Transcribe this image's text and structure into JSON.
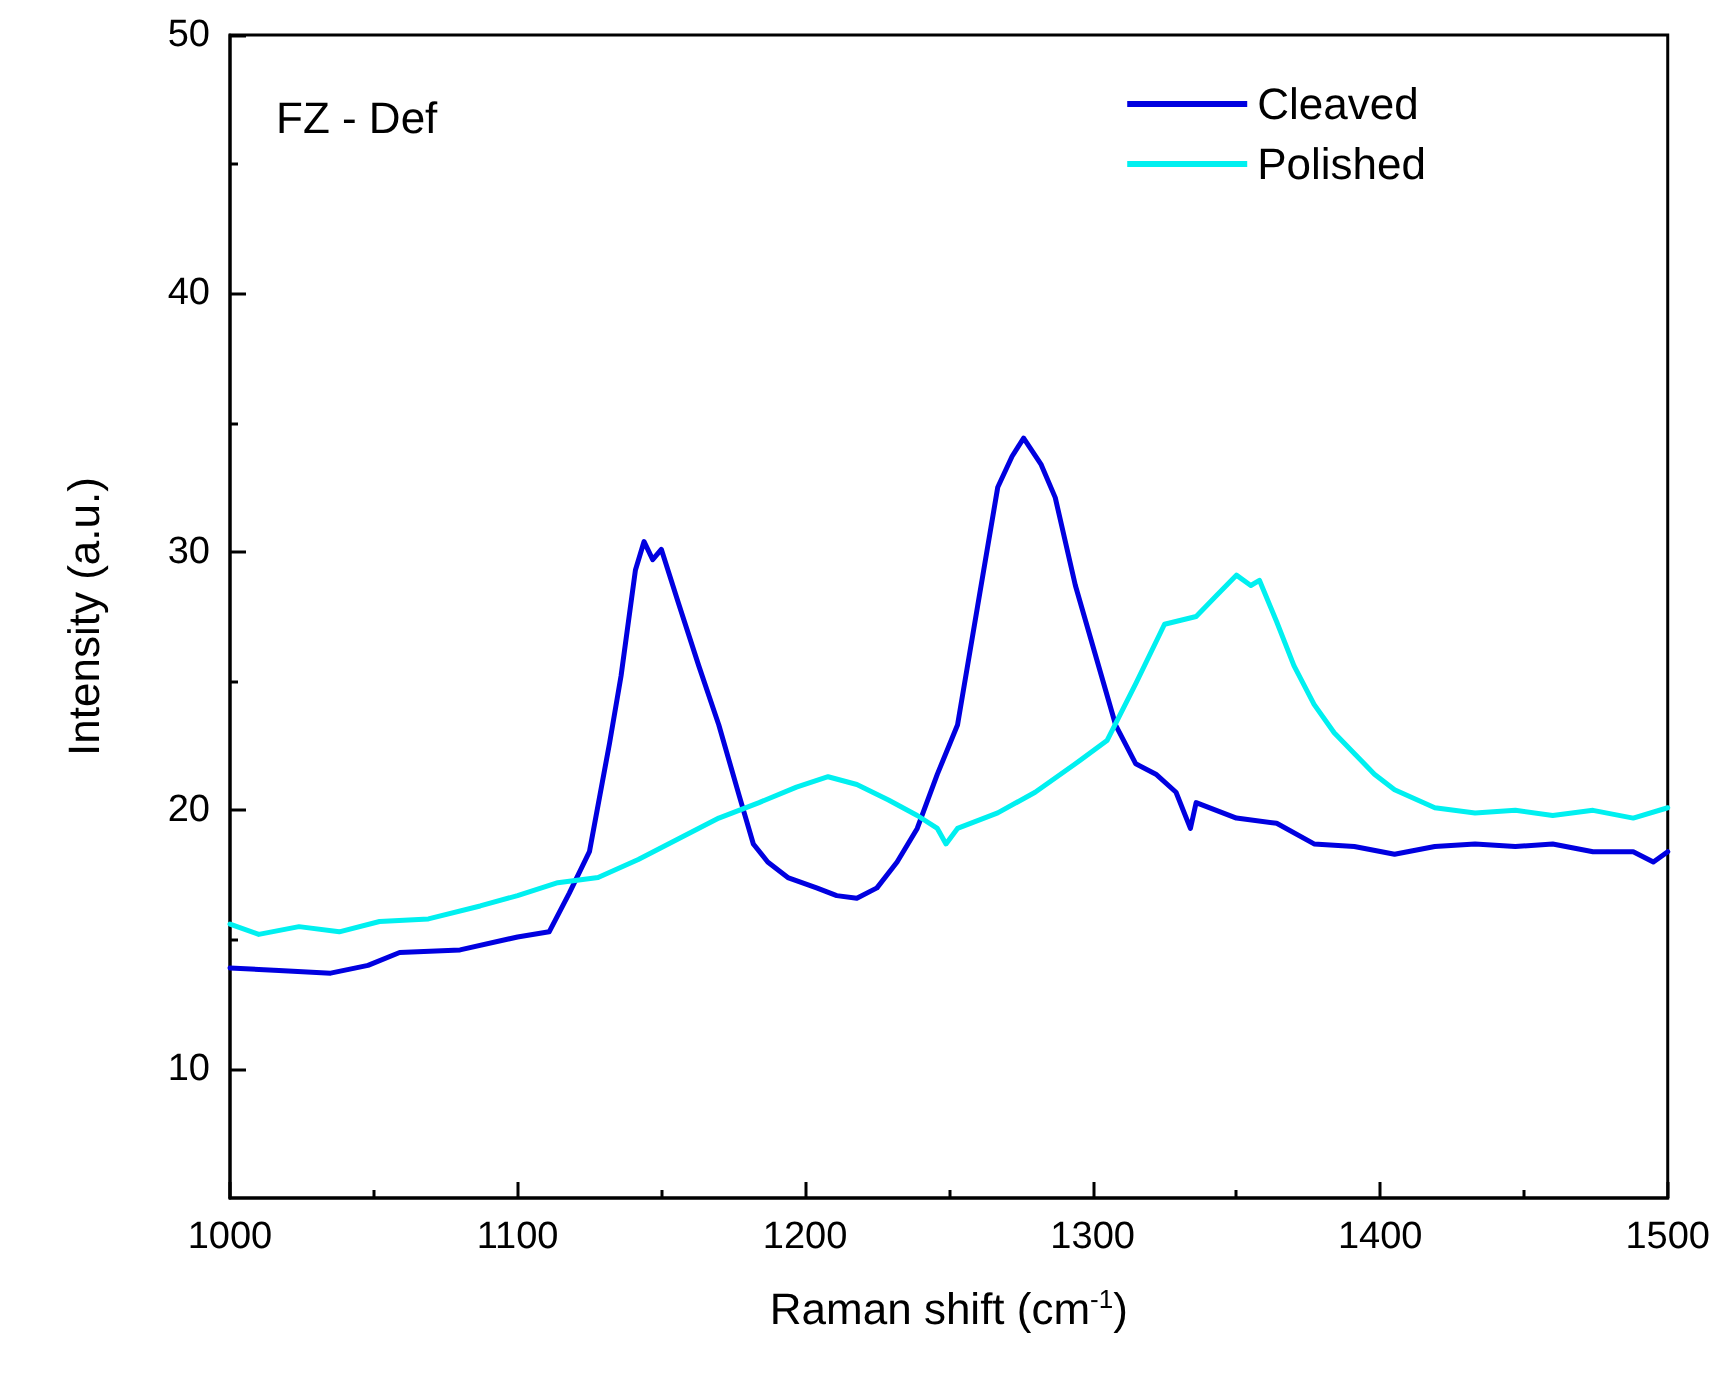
{
  "chart_data": {
    "type": "line",
    "xlabel": "Raman shift (cm$^{-1}$)",
    "ylabel": "Intensity (a.u.)",
    "annotations": [
      "FZ - Def"
    ],
    "xlim": [
      1000,
      1500
    ],
    "xticks": [
      1000,
      1100,
      1200,
      1300,
      1400,
      1500
    ],
    "ylim": [
      5,
      50
    ],
    "yticks": [
      10,
      20,
      30,
      40,
      50
    ],
    "grid": false,
    "legend": "top right",
    "marker": "none",
    "line_style": "solid",
    "series": [
      {
        "name": "Cleaved",
        "color": "#0000e0",
        "x": [
          1000,
          1017,
          1035,
          1048,
          1059,
          1080,
          1100,
          1111,
          1118,
          1125,
          1132,
          1136,
          1141,
          1144,
          1147,
          1150,
          1156,
          1163,
          1170,
          1177,
          1182,
          1187,
          1194,
          1204,
          1211,
          1218,
          1225,
          1232,
          1239,
          1246,
          1253,
          1260,
          1267,
          1272,
          1276,
          1282,
          1287,
          1294,
          1301,
          1308,
          1315,
          1322,
          1329,
          1334,
          1336,
          1350,
          1364,
          1377,
          1391,
          1405,
          1419,
          1433,
          1447,
          1460,
          1474,
          1488,
          1495,
          1500
        ],
        "values": [
          13.9,
          13.8,
          13.7,
          14.0,
          14.5,
          14.6,
          15.1,
          15.3,
          16.8,
          18.4,
          22.6,
          25.2,
          29.3,
          30.4,
          29.7,
          30.1,
          28.0,
          25.6,
          23.3,
          20.6,
          18.7,
          18.0,
          17.4,
          17.0,
          16.7,
          16.6,
          17.0,
          18.0,
          19.3,
          21.4,
          23.3,
          27.9,
          32.5,
          33.7,
          34.4,
          33.4,
          32.1,
          28.7,
          26.0,
          23.3,
          21.8,
          21.4,
          20.7,
          19.3,
          20.3,
          19.7,
          19.5,
          18.7,
          18.6,
          18.3,
          18.6,
          18.7,
          18.6,
          18.7,
          18.4,
          18.4,
          18.0,
          18.4
        ]
      },
      {
        "name": "Polished",
        "color": "#00f0f0",
        "x": [
          1000,
          1010,
          1024,
          1038,
          1052,
          1069,
          1087,
          1100,
          1114,
          1128,
          1142,
          1156,
          1170,
          1184,
          1197,
          1208,
          1218,
          1229,
          1239,
          1246,
          1249,
          1253,
          1267,
          1280,
          1294,
          1305,
          1315,
          1325,
          1336,
          1343,
          1350,
          1355,
          1358,
          1364,
          1370,
          1377,
          1384,
          1391,
          1398,
          1405,
          1419,
          1433,
          1447,
          1460,
          1474,
          1488,
          1500
        ],
        "values": [
          15.6,
          15.2,
          15.5,
          15.3,
          15.7,
          15.8,
          16.3,
          16.7,
          17.2,
          17.4,
          18.1,
          18.9,
          19.7,
          20.3,
          20.9,
          21.3,
          21.0,
          20.4,
          19.8,
          19.3,
          18.7,
          19.3,
          19.9,
          20.7,
          21.8,
          22.7,
          24.9,
          27.2,
          27.5,
          28.3,
          29.1,
          28.7,
          28.9,
          27.3,
          25.6,
          24.1,
          23.0,
          22.2,
          21.4,
          20.8,
          20.1,
          19.9,
          20.0,
          19.8,
          20.0,
          19.7,
          20.1
        ]
      }
    ]
  }
}
